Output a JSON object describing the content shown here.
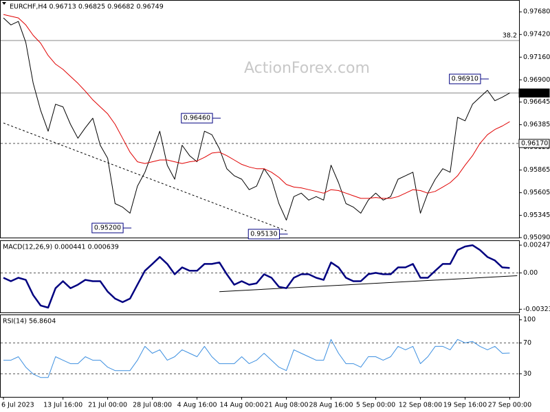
{
  "chart_data": [
    {
      "type": "line",
      "title": "EURCHF,H4  0.96713 0.96825 0.96682 0.96749",
      "watermark": "ActionForex.com",
      "ylim": [
        0.9509,
        0.97808
      ],
      "yticks": [
        {
          "value": 0.9768,
          "label": "0.97680"
        },
        {
          "value": 0.9742,
          "label": "0.97420"
        },
        {
          "value": 0.9716,
          "label": "0.97160"
        },
        {
          "value": 0.969,
          "label": "0.96900"
        },
        {
          "value": 0.96645,
          "label": "0.96645"
        },
        {
          "value": 0.96385,
          "label": "0.96385"
        },
        {
          "value": 0.96125,
          "label": "0.96125"
        },
        {
          "value": 0.95865,
          "label": "0.95865"
        },
        {
          "value": 0.95605,
          "label": "0.95605"
        },
        {
          "value": 0.95345,
          "label": "0.95345"
        },
        {
          "value": 0.9509,
          "label": "0.95090"
        }
      ],
      "series": [
        {
          "name": "EURCHF",
          "color": "#000000",
          "width": 1,
          "values": [
            0.9761,
            0.9753,
            0.9757,
            0.9733,
            0.9686,
            0.9655,
            0.9631,
            0.9662,
            0.9659,
            0.9639,
            0.9623,
            0.9635,
            0.9646,
            0.9615,
            0.96,
            0.9548,
            0.9544,
            0.9537,
            0.9568,
            0.9584,
            0.9607,
            0.9631,
            0.9592,
            0.9576,
            0.9615,
            0.9603,
            0.9596,
            0.9631,
            0.9627,
            0.9611,
            0.9588,
            0.958,
            0.9576,
            0.9564,
            0.9568,
            0.9588,
            0.9576,
            0.9548,
            0.9529,
            0.9556,
            0.956,
            0.9552,
            0.9556,
            0.9552,
            0.9592,
            0.9572,
            0.9548,
            0.9544,
            0.9537,
            0.9552,
            0.956,
            0.9552,
            0.9556,
            0.9576,
            0.958,
            0.9584,
            0.9537,
            0.956,
            0.9576,
            0.9588,
            0.9584,
            0.9647,
            0.9643,
            0.9662,
            0.967,
            0.9678,
            0.9666,
            0.967,
            0.96749
          ]
        },
        {
          "name": "MA",
          "color": "#e00000",
          "width": 1,
          "values": [
            0.9765,
            0.9763,
            0.9761,
            0.9753,
            0.9741,
            0.9732,
            0.9718,
            0.9708,
            0.9702,
            0.9694,
            0.9686,
            0.9677,
            0.9667,
            0.9659,
            0.9651,
            0.9639,
            0.9623,
            0.9607,
            0.9596,
            0.9594,
            0.9596,
            0.9598,
            0.9598,
            0.9596,
            0.9594,
            0.9596,
            0.9597,
            0.9601,
            0.9606,
            0.9607,
            0.9603,
            0.9598,
            0.9593,
            0.959,
            0.9588,
            0.9588,
            0.9584,
            0.9578,
            0.957,
            0.9567,
            0.9566,
            0.9564,
            0.9562,
            0.956,
            0.9564,
            0.9563,
            0.956,
            0.9557,
            0.9554,
            0.9554,
            0.9555,
            0.9554,
            0.9554,
            0.9556,
            0.956,
            0.9564,
            0.9563,
            0.956,
            0.9562,
            0.9567,
            0.9572,
            0.958,
            0.9592,
            0.9603,
            0.9617,
            0.9627,
            0.9633,
            0.9637,
            0.9642
          ]
        }
      ],
      "levels": [
        {
          "value": 0.97351,
          "name": "38.2",
          "style": "solid"
        },
        {
          "value": 0.96749,
          "label": "0.96749",
          "style": "solid",
          "highlight": true
        },
        {
          "value": 0.9617,
          "label": "0.96170",
          "style": "dashed"
        }
      ],
      "callouts": [
        {
          "label": "0.96910",
          "value": 0.9691,
          "x": 65
        },
        {
          "label": "0.96460",
          "value": 0.9646,
          "x": 29
        },
        {
          "label": "0.95200",
          "value": 0.952,
          "x": 17
        },
        {
          "label": "0.95130",
          "value": 0.9513,
          "x": 38
        }
      ],
      "trendline": {
        "x": [
          0,
          38
        ],
        "values": [
          0.96405,
          0.95168
        ]
      }
    },
    {
      "type": "line",
      "title": "MACD(12,26,9) 0.000441 0.000639",
      "ylim": [
        -0.00352,
        0.00284
      ],
      "yticks": [
        0.002471,
        {
          "value": 0,
          "label": "0.00"
        },
        -0.003235
      ],
      "series": [
        {
          "name": "MACD",
          "color": "#000080",
          "width": 2.5,
          "values": [
            -0.00043,
            -0.00074,
            -0.00043,
            -0.00062,
            -0.00198,
            -0.0029,
            -0.00309,
            -0.00136,
            -0.00074,
            -0.00136,
            -0.00105,
            -0.00062,
            -0.00074,
            -0.00074,
            -0.00167,
            -0.00229,
            -0.0026,
            -0.00229,
            -0.00105,
            0.00019,
            0.0008,
            0.00142,
            0.0008,
            -0.00012,
            0.00049,
            0.00019,
            0.00019,
            0.0008,
            0.0008,
            0.00093,
            -0.00012,
            -0.00105,
            -0.00074,
            -0.00105,
            -0.00093,
            -0.00012,
            -0.00043,
            -0.00124,
            -0.00136,
            -0.00043,
            -0.00012,
            -0.00012,
            -0.00043,
            -0.00062,
            0.00093,
            0.00049,
            -0.00043,
            -0.00074,
            -0.00074,
            -0.00012,
            0,
            -0.00012,
            -0.00012,
            0.00049,
            0.00049,
            0.0008,
            -0.00043,
            -0.00043,
            0.00019,
            0.0008,
            0.0008,
            0.00204,
            0.00235,
            0.00247,
            0.00204,
            0.00142,
            0.00111,
            0.00049,
            0.00044
          ]
        }
      ],
      "levels": [
        {
          "value": 0,
          "style": "dashed"
        }
      ],
      "trendline": {
        "x": [
          29,
          69
        ],
        "values": [
          -0.00167,
          -0.00025
        ]
      }
    },
    {
      "type": "line",
      "title": "RSI(14) 56.8604",
      "ylim": [
        0,
        106
      ],
      "yticks": [
        100,
        70,
        30
      ],
      "categories": [
        "6 Jul 2023",
        null,
        null,
        null,
        null,
        null,
        null,
        null,
        "13 Jul 16:00",
        null,
        null,
        null,
        null,
        null,
        "21 Jul 00:00",
        null,
        null,
        null,
        null,
        null,
        "28 Jul 08:00",
        null,
        null,
        null,
        null,
        null,
        "4 Aug 16:00",
        null,
        null,
        null,
        null,
        null,
        "14 Aug 00:00",
        null,
        null,
        null,
        null,
        null,
        "21 Aug 08:00",
        null,
        null,
        null,
        null,
        null,
        "28 Aug 16:00",
        null,
        null,
        null,
        null,
        null,
        "5 Sep 00:00",
        null,
        null,
        null,
        null,
        null,
        "12 Sep 08:00",
        null,
        null,
        null,
        null,
        null,
        "19 Sep 16:00",
        null,
        null,
        null,
        null,
        null,
        "27 Sep 00:00"
      ],
      "series": [
        {
          "name": "RSI",
          "color": "#3c8fe0",
          "width": 1,
          "values": [
            47.6,
            47.6,
            52.1,
            38.6,
            29.6,
            25.2,
            25.2,
            52.1,
            47.6,
            43.1,
            43.1,
            52.1,
            47.6,
            47.6,
            38.6,
            34.1,
            34.1,
            34.1,
            47.6,
            65.6,
            56.6,
            61.1,
            47.6,
            52.1,
            61.1,
            56.6,
            52.1,
            65.6,
            52.1,
            43.1,
            43.1,
            43.1,
            52.1,
            43.1,
            47.6,
            56.6,
            47.6,
            38.6,
            34.1,
            61.1,
            56.6,
            52.1,
            47.6,
            47.6,
            74.6,
            56.6,
            43.1,
            43.1,
            38.6,
            52.1,
            52.1,
            47.6,
            52.1,
            65.6,
            61.1,
            65.6,
            43.1,
            52.1,
            65.6,
            65.6,
            61.1,
            74.6,
            70.1,
            71.9,
            65.6,
            61.1,
            65.6,
            56.6,
            56.9
          ]
        }
      ],
      "levels": [
        {
          "value": 70,
          "style": "dashed"
        },
        {
          "value": 30,
          "style": "dashed"
        }
      ]
    }
  ]
}
